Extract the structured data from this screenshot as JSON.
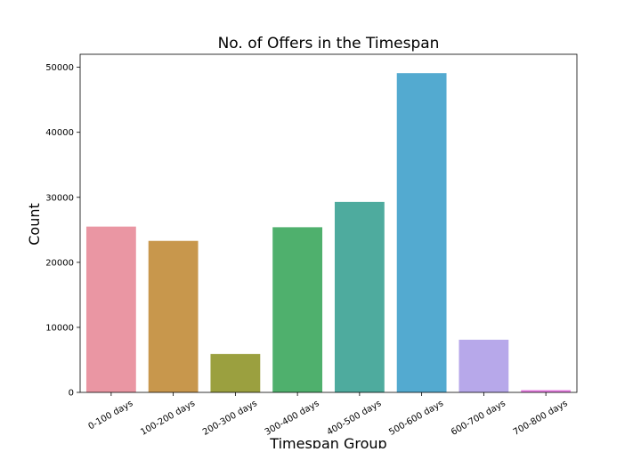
{
  "chart_data": {
    "type": "bar",
    "title": "No. of Offers in the Timespan",
    "xlabel": "Timespan Group",
    "ylabel": "Count",
    "categories": [
      "0-100 days",
      "100-200 days",
      "200-300 days",
      "300-400 days",
      "400-500 days",
      "500-600 days",
      "600-700 days",
      "700-800 days"
    ],
    "values": [
      25500,
      23300,
      5900,
      25400,
      29300,
      49100,
      8100,
      350
    ],
    "colors": [
      "#ea96a3",
      "#c8974c",
      "#9ba03f",
      "#4fb06d",
      "#4eab9e",
      "#53aad0",
      "#b7a8ea",
      "#e67ee0"
    ],
    "ylim": [
      0,
      52000
    ],
    "yticks": [
      0,
      10000,
      20000,
      30000,
      40000,
      50000
    ],
    "grid": false,
    "legend": "none"
  }
}
